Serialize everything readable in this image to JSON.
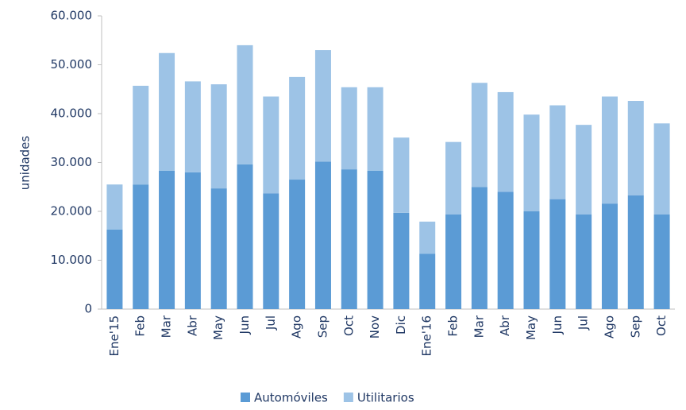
{
  "chart_data": {
    "type": "stacked_bar",
    "y_label": "unidades",
    "categories": [
      "Ene'15",
      "Feb",
      "Mar",
      "Abr",
      "May",
      "Jun",
      "Jul",
      "Ago",
      "Sep",
      "Oct",
      "Nov",
      "Dic",
      "Ene'16",
      "Feb",
      "Mar",
      "Abr",
      "May",
      "Jun",
      "Jul",
      "Ago",
      "Sep",
      "Oct"
    ],
    "series": [
      {
        "name": "Automóviles",
        "color": "#5b9bd5",
        "values": [
          16300,
          25500,
          28300,
          28000,
          24700,
          29600,
          23700,
          26500,
          30200,
          28600,
          28300,
          19700,
          11300,
          19400,
          25000,
          24000,
          20000,
          22500,
          19400,
          21600,
          23300,
          19400
        ]
      },
      {
        "name": "Utilitarios",
        "color": "#9dc3e6",
        "values": [
          9200,
          20200,
          24100,
          18600,
          21300,
          24400,
          19800,
          21000,
          22800,
          16800,
          17100,
          15400,
          6600,
          14800,
          21300,
          20400,
          19800,
          19200,
          18300,
          21900,
          19300,
          18600
        ]
      }
    ],
    "ylim": [
      0,
      60000
    ],
    "yticks": [
      0,
      {
        "value": 10000,
        "label": "10.000"
      },
      {
        "value": 20000,
        "label": "20.000"
      },
      {
        "value": 30000,
        "label": "30.000"
      },
      {
        "value": 40000,
        "label": "40.000"
      },
      {
        "value": 50000,
        "label": "50.000"
      },
      {
        "value": 60000,
        "label": "60.000"
      }
    ],
    "grid": false,
    "legend": "bottom"
  }
}
